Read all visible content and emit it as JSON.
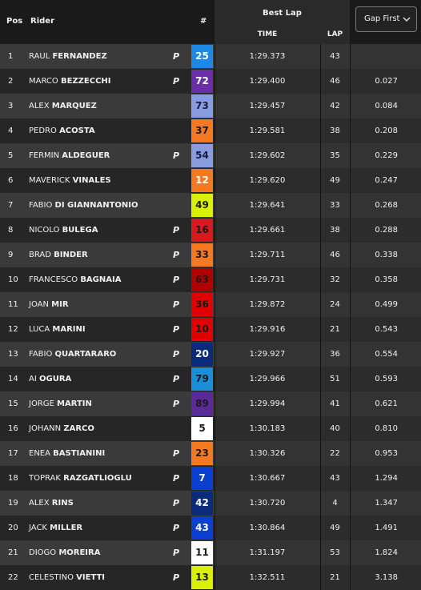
{
  "header": {
    "pos": "Pos",
    "rider": "Rider",
    "number": "#",
    "best_lap": "Best Lap",
    "time": "TIME",
    "lap": "LAP",
    "dropdown": "Gap First"
  },
  "rows": [
    {
      "pos": "1",
      "first": "RAUL",
      "last": "FERNANDEZ",
      "tag": "P",
      "number": "25",
      "color": "#1e88e5",
      "text_color": "#ffffff",
      "time": "1:29.373",
      "lap": "43",
      "gap": null
    },
    {
      "pos": "2",
      "first": "MARCO",
      "last": "BEZZECCHI",
      "tag": "P",
      "number": "72",
      "color": "#6a2fa8",
      "text_color": "#ffffff",
      "time": "1:29.400",
      "lap": "46",
      "gap": "0.027"
    },
    {
      "pos": "3",
      "first": "ALEX",
      "last": "MARQUEZ",
      "number": "73",
      "color": "#8a9ce0",
      "text_color": "#1a1a40",
      "time": "1:29.457",
      "lap": "42",
      "gap": "0.084"
    },
    {
      "pos": "4",
      "first": "PEDRO",
      "last": "ACOSTA",
      "number": "37",
      "color": "#f47920",
      "text_color": "#1a1a1a",
      "time": "1:29.581",
      "lap": "38",
      "gap": "0.208"
    },
    {
      "pos": "5",
      "first": "FERMIN",
      "last": "ALDEGUER",
      "tag": "P",
      "number": "54",
      "color": "#8a9ce0",
      "text_color": "#1a1a40",
      "time": "1:29.602",
      "lap": "35",
      "gap": "0.229"
    },
    {
      "pos": "6",
      "first": "MAVERICK",
      "last": "VINALES",
      "number": "12",
      "color": "#f47920",
      "text_color": "#ffffff",
      "time": "1:29.620",
      "lap": "49",
      "gap": "0.247"
    },
    {
      "pos": "7",
      "first": "FABIO",
      "last": "DI GIANNANTONIO",
      "number": "49",
      "color": "#d9f000",
      "text_color": "#1a1a1a",
      "time": "1:29.641",
      "lap": "33",
      "gap": "0.268"
    },
    {
      "pos": "8",
      "first": "NICOLO",
      "last": "BULEGA",
      "tag": "P",
      "number": "16",
      "color": "#d71920",
      "text_color": "#1a1a1a",
      "time": "1:29.661",
      "lap": "38",
      "gap": "0.288"
    },
    {
      "pos": "9",
      "first": "BRAD",
      "last": "BINDER",
      "tag": "P",
      "number": "33",
      "color": "#f47920",
      "text_color": "#1a1a1a",
      "time": "1:29.711",
      "lap": "46",
      "gap": "0.338"
    },
    {
      "pos": "10",
      "first": "FRANCESCO",
      "last": "BAGNAIA",
      "tag": "P",
      "number": "63",
      "color": "#b00000",
      "text_color": "#1a1a1a",
      "time": "1:29.731",
      "lap": "32",
      "gap": "0.358"
    },
    {
      "pos": "11",
      "first": "JOAN",
      "last": "MIR",
      "tag": "P",
      "number": "36",
      "color": "#e00000",
      "text_color": "#1a1a1a",
      "time": "1:29.872",
      "lap": "24",
      "gap": "0.499"
    },
    {
      "pos": "12",
      "first": "LUCA",
      "last": "MARINI",
      "tag": "P",
      "number": "10",
      "color": "#e00000",
      "text_color": "#1a1a1a",
      "time": "1:29.916",
      "lap": "21",
      "gap": "0.543"
    },
    {
      "pos": "13",
      "first": "FABIO",
      "last": "QUARTARARO",
      "tag": "P",
      "number": "20",
      "color": "#0a2a7a",
      "text_color": "#ffffff",
      "time": "1:29.927",
      "lap": "36",
      "gap": "0.554"
    },
    {
      "pos": "14",
      "first": "AI",
      "last": "OGURA",
      "tag": "P",
      "number": "79",
      "color": "#1a8fd8",
      "text_color": "#1a1a1a",
      "time": "1:29.966",
      "lap": "51",
      "gap": "0.593"
    },
    {
      "pos": "15",
      "first": "JORGE",
      "last": "MARTIN",
      "tag": "P",
      "number": "89",
      "color": "#5a2a9a",
      "text_color": "#1a1a1a",
      "time": "1:29.994",
      "lap": "41",
      "gap": "0.621"
    },
    {
      "pos": "16",
      "first": "JOHANN",
      "last": "ZARCO",
      "number": "5",
      "color": "#ffffff",
      "text_color": "#1a1a1a",
      "time": "1:30.183",
      "lap": "40",
      "gap": "0.810"
    },
    {
      "pos": "17",
      "first": "ENEA",
      "last": "BASTIANINI",
      "tag": "P",
      "number": "23",
      "color": "#f47920",
      "text_color": "#1a1a1a",
      "time": "1:30.326",
      "lap": "22",
      "gap": "0.953"
    },
    {
      "pos": "18",
      "first": "TOPRAK",
      "last": "RAZGATLIOGLU",
      "tag": "P",
      "number": "7",
      "color": "#0a3fd0",
      "text_color": "#ffffff",
      "time": "1:30.667",
      "lap": "43",
      "gap": "1.294"
    },
    {
      "pos": "19",
      "first": "ALEX",
      "last": "RINS",
      "tag": "P",
      "number": "42",
      "color": "#0a2a7a",
      "text_color": "#ffffff",
      "time": "1:30.720",
      "lap": "4",
      "gap": "1.347"
    },
    {
      "pos": "20",
      "first": "JACK",
      "last": "MILLER",
      "tag": "P",
      "number": "43",
      "color": "#0a3fd0",
      "text_color": "#ffffff",
      "time": "1:30.864",
      "lap": "49",
      "gap": "1.491"
    },
    {
      "pos": "21",
      "first": "DIOGO",
      "last": "MOREIRA",
      "tag": "P",
      "number": "11",
      "color": "#ffffff",
      "text_color": "#1a1a1a",
      "time": "1:31.197",
      "lap": "53",
      "gap": "1.824"
    },
    {
      "pos": "22",
      "first": "CELESTINO",
      "last": "VIETTI",
      "tag": "P",
      "number": "13",
      "color": "#d9f000",
      "text_color": "#1a1a1a",
      "time": "1:32.511",
      "lap": "21",
      "gap": "3.138"
    }
  ]
}
